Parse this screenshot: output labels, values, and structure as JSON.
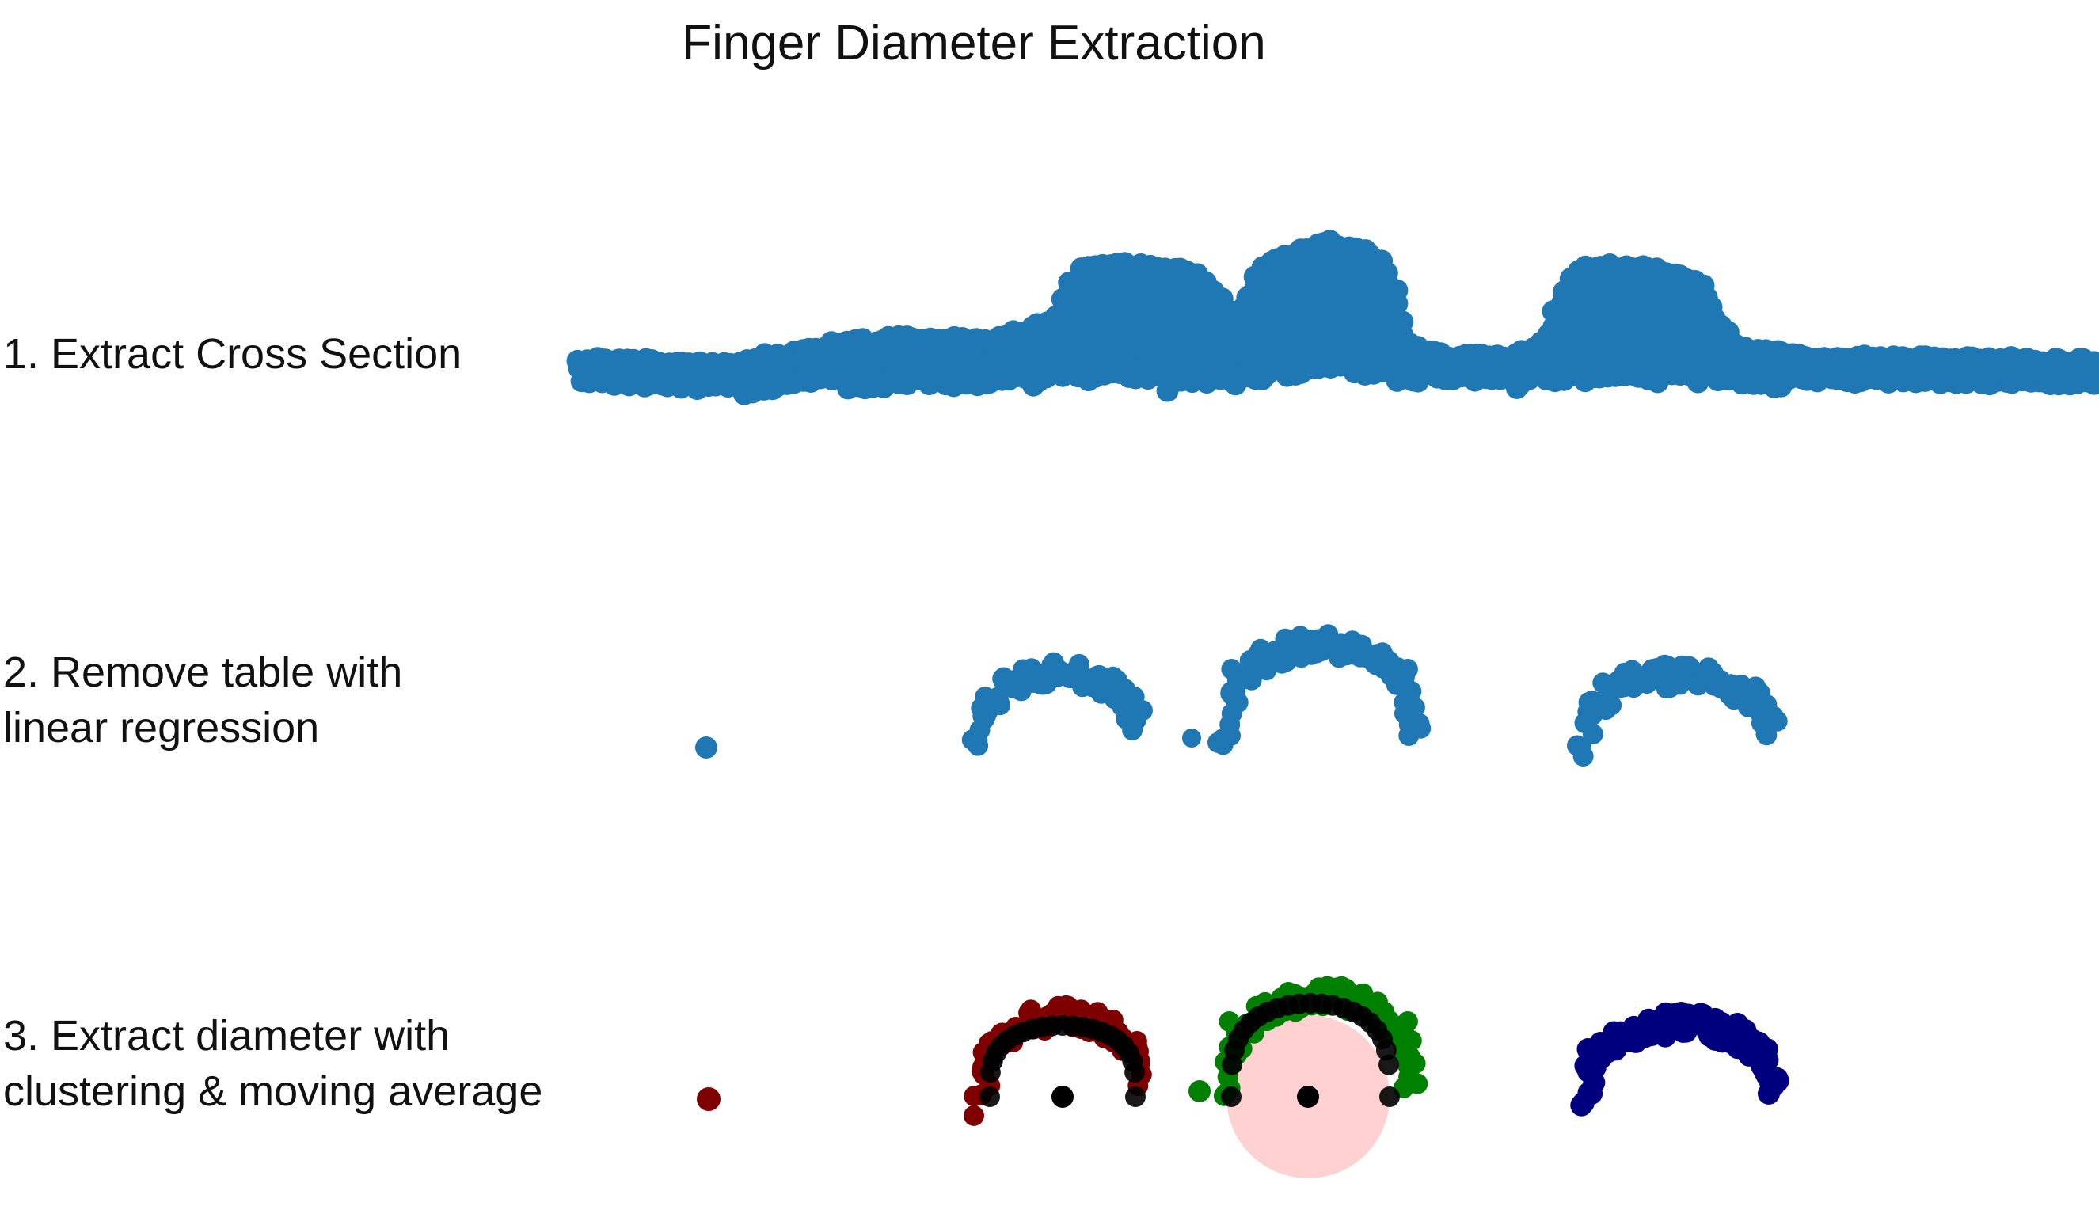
{
  "title": "Finger Diameter Extraction",
  "steps": [
    {
      "lines": [
        "1. Extract Cross Section"
      ]
    },
    {
      "lines": [
        "2. Remove table with",
        "linear regression"
      ]
    },
    {
      "lines": [
        "3. Extract diameter with",
        "clustering & moving average"
      ]
    }
  ],
  "colors": {
    "cross_section": "#1f77b4",
    "cluster_1": "#7f0000",
    "cluster_2": "#008000",
    "cluster_3": "#00007f",
    "moving_average": "#000000",
    "diameter_circle": "#ff9a9a"
  }
}
